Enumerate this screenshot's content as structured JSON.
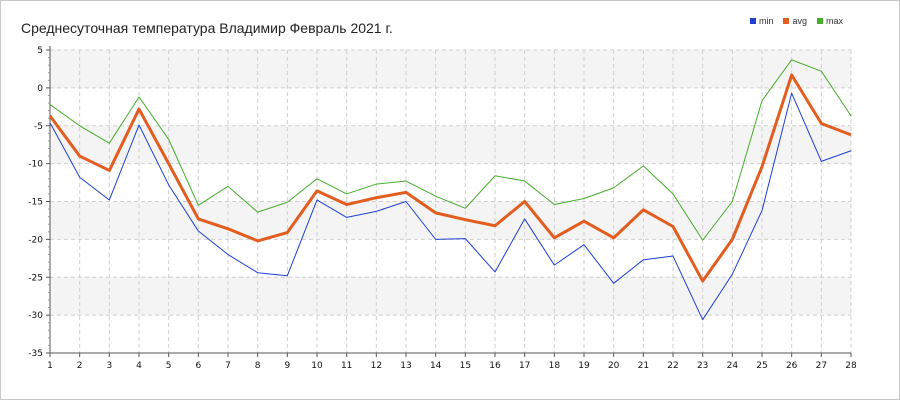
{
  "chart_data": {
    "type": "line",
    "title": "Среднесуточная температура Владимир  Февраль 2021 г.",
    "xlabel": "",
    "ylabel": "",
    "x": [
      1,
      2,
      3,
      4,
      5,
      6,
      7,
      8,
      9,
      10,
      11,
      12,
      13,
      14,
      15,
      16,
      17,
      18,
      19,
      20,
      21,
      22,
      23,
      24,
      25,
      26,
      27,
      28
    ],
    "xlim": [
      1,
      28
    ],
    "ylim": [
      -35,
      5
    ],
    "yticks": [
      5,
      0,
      -5,
      -10,
      -15,
      -20,
      -25,
      -30,
      -35
    ],
    "grid": true,
    "legend_position": "top-right",
    "series": [
      {
        "name": "min",
        "color": "#1f3fd6",
        "values": [
          -4.6,
          -11.8,
          -14.8,
          -4.9,
          -12.8,
          -18.9,
          -22.0,
          -24.4,
          -24.8,
          -14.8,
          -17.1,
          -16.3,
          -15.0,
          -20.0,
          -19.9,
          -24.3,
          -17.3,
          -23.4,
          -20.7,
          -25.8,
          -22.7,
          -22.2,
          -30.6,
          -24.6,
          -16.2,
          -0.7,
          -9.7,
          -8.3
        ]
      },
      {
        "name": "avg",
        "color": "#e35d20",
        "values": [
          -3.7,
          -9.0,
          -10.9,
          -2.8,
          -10.0,
          -17.3,
          -18.6,
          -20.2,
          -19.1,
          -13.6,
          -15.4,
          -14.5,
          -13.8,
          -16.5,
          -17.4,
          -18.2,
          -15.0,
          -19.8,
          -17.6,
          -19.8,
          -16.1,
          -18.3,
          -25.5,
          -20.0,
          -10.4,
          1.7,
          -4.7,
          -6.2
        ]
      },
      {
        "name": "max",
        "color": "#46ad2c",
        "values": [
          -2.2,
          -5.0,
          -7.3,
          -1.2,
          -6.8,
          -15.5,
          -13.0,
          -16.4,
          -15.1,
          -12.0,
          -14.0,
          -12.7,
          -12.3,
          -14.3,
          -15.9,
          -11.6,
          -12.3,
          -15.4,
          -14.6,
          -13.2,
          -10.3,
          -14.0,
          -20.1,
          -15.0,
          -1.7,
          3.7,
          2.2,
          -3.7
        ]
      }
    ]
  }
}
